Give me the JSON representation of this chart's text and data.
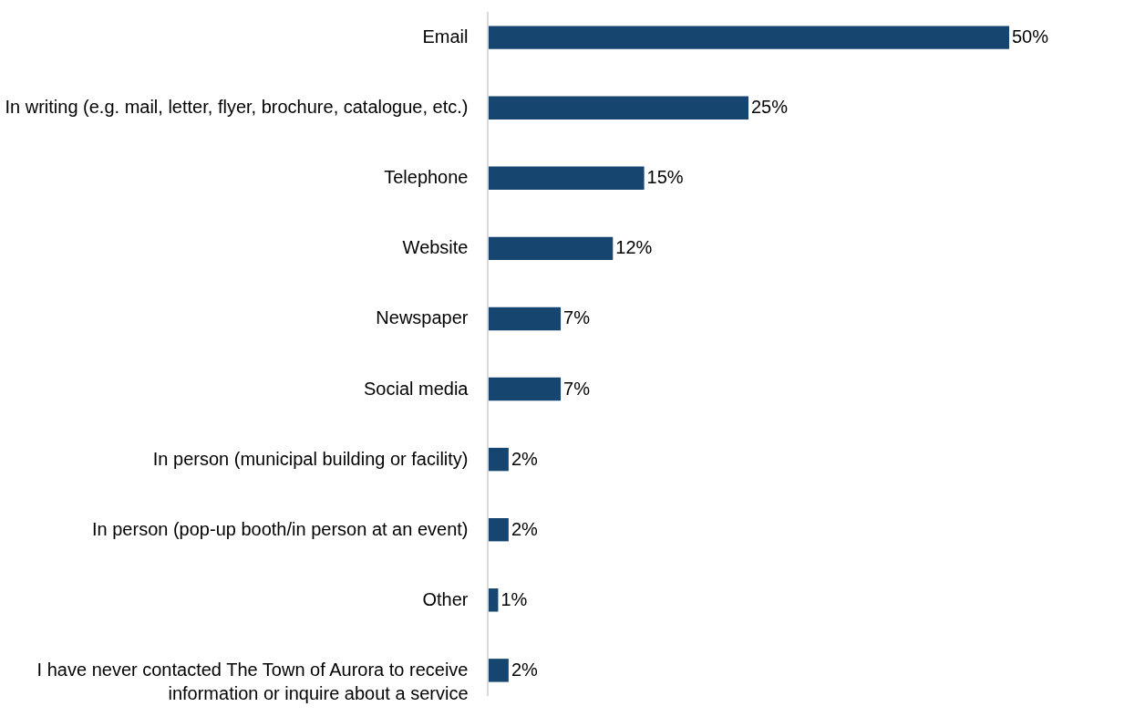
{
  "chart_data": {
    "type": "bar",
    "orientation": "horizontal",
    "categories": [
      "Email",
      "In writing (e.g. mail, letter, flyer, brochure, catalogue, etc.)",
      "Telephone",
      "Website",
      "Newspaper",
      "Social media",
      "In person (municipal building or facility)",
      "In person (pop-up booth/in person at an event)",
      "Other",
      "I have never contacted The Town of Aurora to receive information or inquire about a service"
    ],
    "values": [
      50,
      25,
      15,
      12,
      7,
      7,
      2,
      2,
      1,
      2
    ],
    "value_labels": [
      "50%",
      "25%",
      "15%",
      "12%",
      "7%",
      "7%",
      "2%",
      "2%",
      "1%",
      "2%"
    ],
    "color": "#16456f"
  }
}
